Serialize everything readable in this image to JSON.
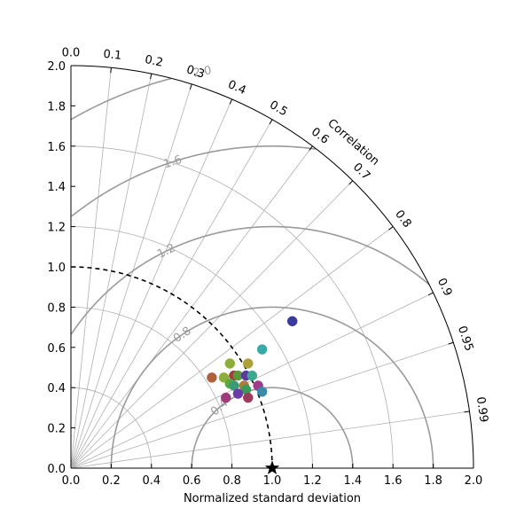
{
  "chart_data": {
    "type": "scatter",
    "diagram": "taylor",
    "xlabel": "Normalized standard deviation",
    "corr_label": "Correlation",
    "std_range": [
      0,
      2
    ],
    "std_ticks": [
      "0.0",
      "0.2",
      "0.4",
      "0.6",
      "0.8",
      "1.0",
      "1.2",
      "1.4",
      "1.6",
      "1.8",
      "2.0"
    ],
    "corr_ticks": [
      {
        "value": 0.0,
        "label": "0.0"
      },
      {
        "value": 0.1,
        "label": "0.1"
      },
      {
        "value": 0.2,
        "label": "0.2"
      },
      {
        "value": 0.3,
        "label": "0.3"
      },
      {
        "value": 0.4,
        "label": "0.4"
      },
      {
        "value": 0.5,
        "label": "0.5"
      },
      {
        "value": 0.6,
        "label": "0.6"
      },
      {
        "value": 0.7,
        "label": "0.7"
      },
      {
        "value": 0.8,
        "label": "0.8"
      },
      {
        "value": 0.9,
        "label": "0.9"
      },
      {
        "value": 0.95,
        "label": "0.95"
      },
      {
        "value": 0.99,
        "label": "0.99"
      }
    ],
    "corr_grid": [
      0.0,
      0.1,
      0.2,
      0.3,
      0.4,
      0.5,
      0.6,
      0.7,
      0.8,
      0.9,
      0.95,
      0.99
    ],
    "std_grid": [
      0.4,
      0.8,
      1.2,
      1.6,
      2.0
    ],
    "rms_contours": [
      {
        "value": 0.4,
        "label": "0.4"
      },
      {
        "value": 0.8,
        "label": "0.8"
      },
      {
        "value": 1.2,
        "label": "1.2"
      },
      {
        "value": 1.6,
        "label": "1.6"
      },
      {
        "value": 2.0,
        "label": "2.0"
      }
    ],
    "reference": {
      "std": 1.0,
      "corr": 1.0
    },
    "points": [
      {
        "x": 1.1,
        "y": 0.73,
        "color": "#3a3a9e"
      },
      {
        "x": 0.95,
        "y": 0.59,
        "color": "#3aa8a8"
      },
      {
        "x": 0.79,
        "y": 0.52,
        "color": "#8cad3a"
      },
      {
        "x": 0.88,
        "y": 0.52,
        "color": "#b0a03a"
      },
      {
        "x": 0.7,
        "y": 0.45,
        "color": "#b0603a"
      },
      {
        "x": 0.76,
        "y": 0.45,
        "color": "#8cad3a"
      },
      {
        "x": 0.81,
        "y": 0.46,
        "color": "#a0403a"
      },
      {
        "x": 0.83,
        "y": 0.46,
        "color": "#5a9a3a"
      },
      {
        "x": 0.87,
        "y": 0.46,
        "color": "#5a3aa0"
      },
      {
        "x": 0.9,
        "y": 0.46,
        "color": "#3aa890"
      },
      {
        "x": 0.79,
        "y": 0.42,
        "color": "#5aa83a"
      },
      {
        "x": 0.81,
        "y": 0.41,
        "color": "#3a9a7a"
      },
      {
        "x": 0.86,
        "y": 0.41,
        "color": "#a8803a"
      },
      {
        "x": 0.93,
        "y": 0.41,
        "color": "#a03a8c"
      },
      {
        "x": 0.87,
        "y": 0.39,
        "color": "#3a9a5a"
      },
      {
        "x": 0.95,
        "y": 0.38,
        "color": "#3a8aa8"
      },
      {
        "x": 0.83,
        "y": 0.37,
        "color": "#6a3aa8"
      },
      {
        "x": 0.77,
        "y": 0.35,
        "color": "#a03a7a"
      },
      {
        "x": 0.88,
        "y": 0.35,
        "color": "#a03a5a"
      }
    ]
  }
}
